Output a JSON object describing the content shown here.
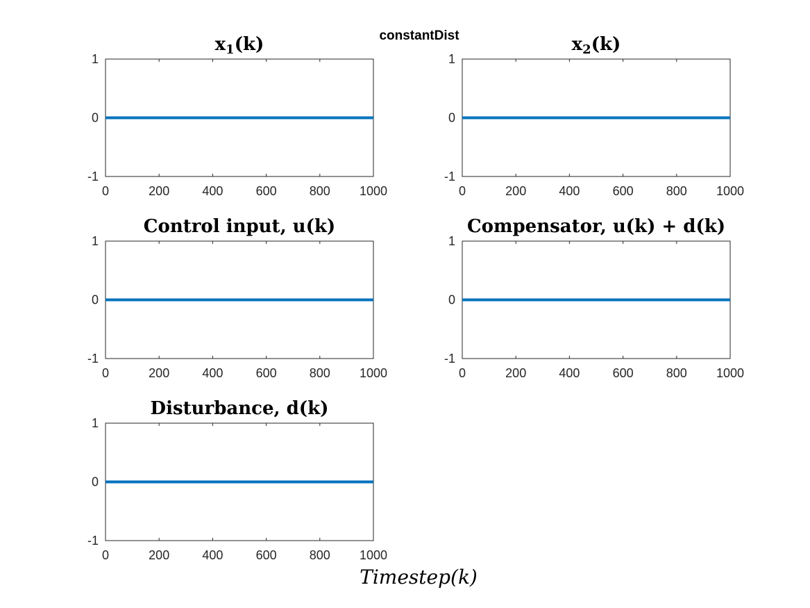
{
  "figure": {
    "suptitle": "constantDist",
    "xlabel": "Timestep(k)"
  },
  "colors": {
    "series": "#0072BD",
    "axes": "#262626"
  },
  "chart_data": [
    {
      "type": "line",
      "title": "x1(k)",
      "title_main": "x",
      "title_sub": "1",
      "title_rest": "(k)",
      "xlim": [
        0,
        1000
      ],
      "ylim": [
        -1,
        1
      ],
      "xticks": [
        0,
        200,
        400,
        600,
        800,
        1000
      ],
      "yticks": [
        -1,
        0,
        1
      ],
      "grid": false,
      "series": [
        {
          "x": [
            0,
            1000
          ],
          "y": [
            0,
            0
          ]
        }
      ]
    },
    {
      "type": "line",
      "title": "x2(k)",
      "title_main": "x",
      "title_sub": "2",
      "title_rest": "(k)",
      "xlim": [
        0,
        1000
      ],
      "ylim": [
        -1,
        1
      ],
      "xticks": [
        0,
        200,
        400,
        600,
        800,
        1000
      ],
      "yticks": [
        -1,
        0,
        1
      ],
      "grid": false,
      "series": [
        {
          "x": [
            0,
            1000
          ],
          "y": [
            0,
            0
          ]
        }
      ]
    },
    {
      "type": "line",
      "title": "Control input, u(k)",
      "xlim": [
        0,
        1000
      ],
      "ylim": [
        -1,
        1
      ],
      "xticks": [
        0,
        200,
        400,
        600,
        800,
        1000
      ],
      "yticks": [
        -1,
        0,
        1
      ],
      "grid": false,
      "series": [
        {
          "x": [
            0,
            1000
          ],
          "y": [
            0,
            0
          ]
        }
      ]
    },
    {
      "type": "line",
      "title": "Compensator, u(k) + d(k)",
      "xlim": [
        0,
        1000
      ],
      "ylim": [
        -1,
        1
      ],
      "xticks": [
        0,
        200,
        400,
        600,
        800,
        1000
      ],
      "yticks": [
        -1,
        0,
        1
      ],
      "grid": false,
      "series": [
        {
          "x": [
            0,
            1000
          ],
          "y": [
            0,
            0
          ]
        }
      ]
    },
    {
      "type": "line",
      "title": "Disturbance, d(k)",
      "xlim": [
        0,
        1000
      ],
      "ylim": [
        -1,
        1
      ],
      "xticks": [
        0,
        200,
        400,
        600,
        800,
        1000
      ],
      "yticks": [
        -1,
        0,
        1
      ],
      "grid": false,
      "series": [
        {
          "x": [
            0,
            1000
          ],
          "y": [
            0,
            0
          ]
        }
      ]
    }
  ]
}
